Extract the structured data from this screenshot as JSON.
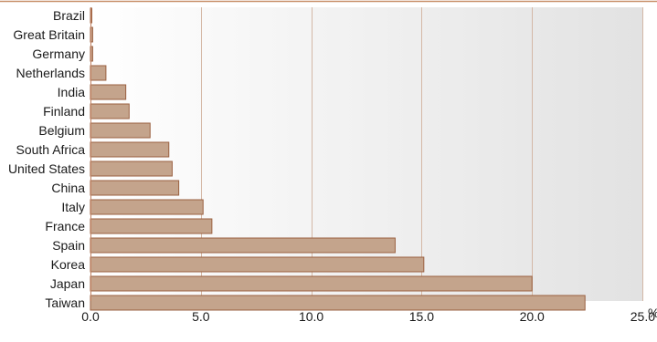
{
  "chart_data": {
    "type": "bar",
    "orientation": "horizontal",
    "categories": [
      "Brazil",
      "Great Britain",
      "Germany",
      "Netherlands",
      "India",
      "Finland",
      "Belgium",
      "South Africa",
      "United States",
      "China",
      "Italy",
      "France",
      "Spain",
      "Korea",
      "Japan",
      "Taiwan"
    ],
    "values": [
      0.05,
      0.1,
      0.1,
      0.7,
      1.6,
      1.75,
      2.7,
      3.55,
      3.7,
      4.0,
      5.1,
      5.5,
      13.8,
      15.1,
      20.0,
      22.4
    ],
    "title": "",
    "xlabel": "",
    "ylabel": "",
    "x_unit": "%",
    "xlim": [
      0,
      25
    ],
    "x_ticks": [
      "0.0",
      "5.0",
      "10.0",
      "15.0",
      "20.0",
      "25.0"
    ],
    "grid": "vertical",
    "legend": "none",
    "colors": {
      "bar_fill": "#c4a48c",
      "bar_stroke": "#9a6040",
      "grid": "#d4b8a6",
      "axis": "#c08060",
      "top_border": "#c8906a",
      "background_light": "#ffffff",
      "background_dark": "#e2e2e2"
    }
  }
}
